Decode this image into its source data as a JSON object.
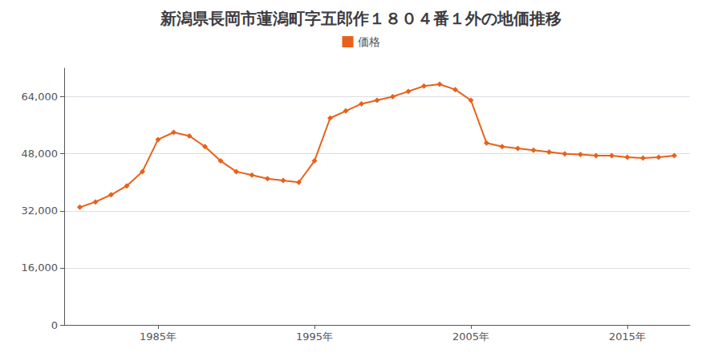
{
  "chart_data": {
    "type": "line",
    "title": "新潟県長岡市蓮潟町字五郎作１８０４番１外の地価推移",
    "series": [
      {
        "name": "価格",
        "color": "#E8611A",
        "marker": "diamond",
        "values": [
          33000,
          34500,
          36500,
          39000,
          43000,
          52000,
          54000,
          53000,
          50000,
          46000,
          43000,
          42000,
          41000,
          40500,
          40000,
          46000,
          58000,
          60000,
          62000,
          63000,
          64000,
          65500,
          67000,
          67500,
          66000,
          63000,
          51000,
          50000,
          49500,
          49000,
          48500,
          48000,
          47800,
          47500,
          47500,
          47000,
          46800,
          47000,
          47500
        ]
      }
    ],
    "x": [
      1980,
      1981,
      1982,
      1983,
      1984,
      1985,
      1986,
      1987,
      1988,
      1989,
      1990,
      1991,
      1992,
      1993,
      1994,
      1995,
      1996,
      1997,
      1998,
      1999,
      2000,
      2001,
      2002,
      2003,
      2004,
      2005,
      2006,
      2007,
      2008,
      2009,
      2010,
      2011,
      2012,
      2013,
      2014,
      2015,
      2016,
      2017,
      2018
    ],
    "xlim": [
      1979,
      2019
    ],
    "xticks": [
      {
        "value": 1985,
        "label": "1985年"
      },
      {
        "value": 1995,
        "label": "1995年"
      },
      {
        "value": 2005,
        "label": "2005年"
      },
      {
        "value": 2015,
        "label": "2015年"
      }
    ],
    "ylim": [
      0,
      72000
    ],
    "yticks": [
      0,
      {
        "value": 16000,
        "label": "16,000"
      },
      {
        "value": 32000,
        "label": "32,000"
      },
      {
        "value": 48000,
        "label": "48,000"
      },
      {
        "value": 64000,
        "label": "64,000"
      }
    ],
    "grid": true,
    "legend": "top"
  }
}
